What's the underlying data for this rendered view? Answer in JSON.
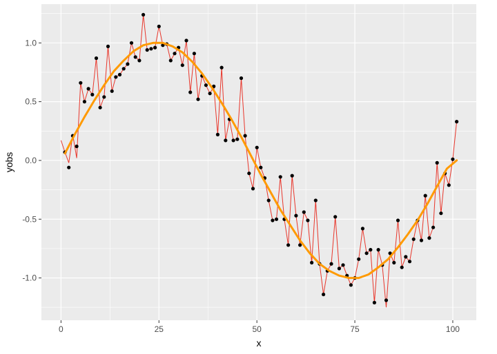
{
  "chart_data": {
    "type": "scatter",
    "title": "",
    "xlabel": "x",
    "ylabel": "yobs",
    "xlim": [
      -5,
      106
    ],
    "ylim": [
      -1.36,
      1.33
    ],
    "x_ticks": [
      0,
      25,
      50,
      75,
      100
    ],
    "x_tick_labels": [
      "0",
      "25",
      "50",
      "75",
      "100"
    ],
    "y_ticks": [
      -1.0,
      -0.5,
      0.0,
      0.5,
      1.0
    ],
    "y_tick_labels": [
      "-1.0",
      "-0.5",
      "0.0",
      "0.5",
      "1.0"
    ],
    "grid": true,
    "colors": {
      "panel": "#ebebeb",
      "grid": "#ffffff",
      "points": "#000000",
      "noisy_line": "#e8352a",
      "smooth_line": "#ff9a00",
      "tick_text": "#4d4d4d",
      "axis_title": "#000000"
    },
    "series": [
      {
        "kind": "points",
        "x": [
          1,
          2,
          3,
          4,
          5,
          6,
          7,
          8,
          9,
          10,
          11,
          12,
          13,
          14,
          15,
          16,
          17,
          18,
          19,
          20,
          21,
          22,
          23,
          24,
          25,
          26,
          27,
          28,
          29,
          30,
          31,
          32,
          33,
          34,
          35,
          36,
          37,
          38,
          39,
          40,
          41,
          42,
          43,
          44,
          45,
          46,
          47,
          48,
          49,
          50,
          51,
          52,
          53,
          54,
          55,
          56,
          57,
          58,
          59,
          60,
          61,
          62,
          63,
          64,
          65,
          66,
          67,
          68,
          69,
          70,
          71,
          72,
          73,
          74,
          75,
          76,
          77,
          78,
          79,
          80,
          81,
          82,
          83,
          84,
          85,
          86,
          87,
          88,
          89,
          90,
          91,
          92,
          93,
          94,
          95,
          96,
          97,
          98,
          99,
          100,
          101
        ],
        "y": [
          0.07,
          -0.06,
          0.21,
          0.12,
          0.66,
          0.5,
          0.61,
          0.56,
          0.87,
          0.45,
          0.54,
          0.97,
          0.59,
          0.71,
          0.73,
          0.78,
          0.82,
          1.0,
          0.88,
          0.85,
          1.24,
          0.94,
          0.95,
          0.96,
          1.14,
          0.98,
          0.99,
          0.85,
          0.91,
          0.96,
          0.81,
          1.02,
          0.58,
          0.91,
          0.52,
          0.72,
          0.64,
          0.57,
          0.63,
          0.22,
          0.79,
          0.17,
          0.35,
          0.17,
          0.18,
          0.7,
          0.21,
          -0.11,
          -0.24,
          0.11,
          -0.06,
          -0.15,
          -0.34,
          -0.51,
          -0.5,
          -0.14,
          -0.5,
          -0.72,
          -0.13,
          -0.47,
          -0.72,
          -0.44,
          -0.51,
          -0.87,
          -0.34,
          -0.88,
          -1.14,
          -0.94,
          -0.88,
          -0.48,
          -0.92,
          -0.89,
          -0.98,
          -1.06,
          -1.0,
          -0.84,
          -0.58,
          -0.79,
          -0.76,
          -1.21,
          -0.76,
          -0.89,
          -1.19,
          -0.79,
          -0.87,
          -0.51,
          -0.91,
          -0.82,
          -0.86,
          -0.67,
          -0.51,
          -0.68,
          -0.3,
          -0.66,
          -0.57,
          -0.02,
          -0.45,
          -0.11,
          -0.21,
          0.01,
          0.33
        ]
      },
      {
        "kind": "noisy-line",
        "x": [
          0,
          1,
          2,
          3,
          4,
          5,
          6,
          7,
          8,
          9,
          10,
          11,
          12,
          13,
          14,
          15,
          16,
          17,
          18,
          19,
          20,
          21,
          22,
          23,
          24,
          25,
          26,
          27,
          28,
          29,
          30,
          31,
          32,
          33,
          34,
          35,
          36,
          37,
          38,
          39,
          40,
          41,
          42,
          43,
          44,
          45,
          46,
          47,
          48,
          49,
          50,
          51,
          52,
          53,
          54,
          55,
          56,
          57,
          58,
          59,
          60,
          61,
          62,
          63,
          64,
          65,
          66,
          67,
          68,
          69,
          70,
          71,
          72,
          73,
          74,
          75,
          76,
          77,
          78,
          79,
          80,
          81,
          82,
          83,
          84,
          85,
          86,
          87,
          88,
          89,
          90,
          91,
          92,
          93,
          94,
          95,
          96,
          97,
          98,
          99,
          100,
          101
        ],
        "y": [
          0.17,
          0.07,
          -0.02,
          0.22,
          0.02,
          0.66,
          0.5,
          0.61,
          0.56,
          0.87,
          0.45,
          0.54,
          0.97,
          0.59,
          0.71,
          0.73,
          0.78,
          0.82,
          1.0,
          0.88,
          0.85,
          1.24,
          0.94,
          0.95,
          0.96,
          1.14,
          0.98,
          0.99,
          0.85,
          0.91,
          0.96,
          0.81,
          1.02,
          0.58,
          0.91,
          0.52,
          0.72,
          0.64,
          0.57,
          0.63,
          0.22,
          0.79,
          0.17,
          0.35,
          0.17,
          0.18,
          0.7,
          0.21,
          -0.11,
          -0.24,
          0.11,
          -0.06,
          -0.15,
          -0.34,
          -0.51,
          -0.5,
          -0.14,
          -0.5,
          -0.72,
          -0.13,
          -0.47,
          -0.72,
          -0.44,
          -0.51,
          -0.87,
          -0.34,
          -0.88,
          -1.14,
          -0.94,
          -0.88,
          -0.48,
          -0.92,
          -0.89,
          -0.98,
          -1.06,
          -1.0,
          -0.84,
          -0.58,
          -0.79,
          -0.76,
          -1.21,
          -0.76,
          -0.89,
          -1.25,
          -0.79,
          -0.87,
          -0.51,
          -0.91,
          -0.82,
          -0.86,
          -0.67,
          -0.51,
          -0.68,
          -0.3,
          -0.66,
          -0.57,
          -0.02,
          -0.45,
          -0.11,
          -0.21,
          0.01,
          0.33
        ]
      },
      {
        "kind": "smooth-line",
        "x": [
          1,
          3.5,
          6,
          8.5,
          11,
          13.5,
          16,
          18.5,
          21,
          23.5,
          26,
          28.5,
          31,
          33.5,
          36,
          38.5,
          41,
          43.5,
          46,
          48.5,
          51,
          53.5,
          56,
          58.5,
          61,
          63.5,
          66,
          68.5,
          71,
          73.5,
          76,
          78.5,
          81,
          83.5,
          86,
          88.5,
          91,
          93.5,
          96,
          98.5,
          101
        ],
        "y": [
          0.06,
          0.22,
          0.37,
          0.51,
          0.64,
          0.76,
          0.85,
          0.93,
          0.98,
          1.0,
          1.0,
          0.97,
          0.92,
          0.84,
          0.74,
          0.62,
          0.49,
          0.35,
          0.2,
          0.04,
          -0.12,
          -0.27,
          -0.42,
          -0.55,
          -0.68,
          -0.79,
          -0.88,
          -0.94,
          -0.98,
          -1.0,
          -1.0,
          -0.97,
          -0.91,
          -0.84,
          -0.74,
          -0.63,
          -0.51,
          -0.37,
          -0.22,
          -0.07,
          0.0
        ]
      }
    ]
  }
}
